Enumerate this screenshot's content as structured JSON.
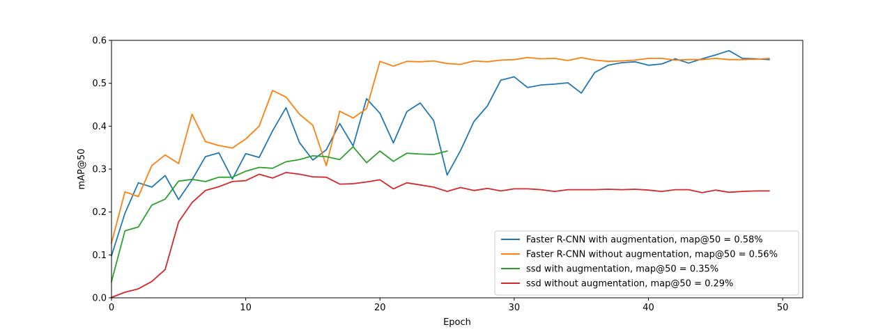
{
  "chart_data": {
    "type": "line",
    "xlabel": "Epoch",
    "ylabel": "mAP@50",
    "xlim": [
      0,
      51.5
    ],
    "ylim": [
      0,
      0.6
    ],
    "xticks": [
      0,
      10,
      20,
      30,
      40,
      50
    ],
    "yticks": [
      0.0,
      0.1,
      0.2,
      0.3,
      0.4,
      0.5,
      0.6
    ],
    "xtick_labels": [
      "0",
      "10",
      "20",
      "30",
      "40",
      "50"
    ],
    "ytick_labels": [
      "0.0",
      "0.1",
      "0.2",
      "0.3",
      "0.4",
      "0.5",
      "0.6"
    ],
    "grid": false,
    "legend_position": "bottom-right",
    "series": [
      {
        "name": "Faster R-CNN with augmentation, map@50 = 0.58%",
        "color": "#1f77b4",
        "x": [
          0,
          1,
          2,
          3,
          4,
          5,
          6,
          7,
          8,
          9,
          10,
          11,
          12,
          13,
          14,
          15,
          16,
          17,
          18,
          19,
          20,
          21,
          22,
          23,
          24,
          25,
          26,
          27,
          28,
          29,
          30,
          31,
          32,
          33,
          34,
          35,
          36,
          37,
          38,
          39,
          40,
          41,
          42,
          43,
          44,
          45,
          46,
          47,
          48,
          49
        ],
        "values": [
          0.098,
          0.197,
          0.268,
          0.258,
          0.285,
          0.229,
          0.275,
          0.329,
          0.338,
          0.277,
          0.336,
          0.327,
          0.389,
          0.443,
          0.362,
          0.321,
          0.345,
          0.406,
          0.354,
          0.464,
          0.43,
          0.361,
          0.434,
          0.454,
          0.413,
          0.286,
          0.343,
          0.411,
          0.447,
          0.507,
          0.515,
          0.49,
          0.496,
          0.498,
          0.501,
          0.477,
          0.525,
          0.542,
          0.548,
          0.55,
          0.542,
          0.545,
          0.557,
          0.547,
          0.557,
          0.566,
          0.576,
          0.558,
          0.557,
          0.555
        ]
      },
      {
        "name": "Faster R-CNN without augmentation, map@50 = 0.56%",
        "color": "#ff7f0e",
        "x": [
          0,
          1,
          2,
          3,
          4,
          5,
          6,
          7,
          8,
          9,
          10,
          11,
          12,
          13,
          14,
          15,
          16,
          17,
          18,
          19,
          20,
          21,
          22,
          23,
          24,
          25,
          26,
          27,
          28,
          29,
          30,
          31,
          32,
          33,
          34,
          35,
          36,
          37,
          38,
          39,
          40,
          41,
          42,
          43,
          44,
          45,
          46,
          47,
          48,
          49
        ],
        "values": [
          0.128,
          0.247,
          0.236,
          0.308,
          0.333,
          0.313,
          0.428,
          0.364,
          0.355,
          0.349,
          0.37,
          0.4,
          0.483,
          0.468,
          0.428,
          0.402,
          0.308,
          0.435,
          0.419,
          0.441,
          0.551,
          0.54,
          0.551,
          0.55,
          0.552,
          0.546,
          0.544,
          0.552,
          0.55,
          0.554,
          0.555,
          0.56,
          0.557,
          0.558,
          0.553,
          0.56,
          0.554,
          0.551,
          0.552,
          0.554,
          0.558,
          0.558,
          0.554,
          0.555,
          0.555,
          0.558,
          0.555,
          0.555,
          0.556,
          0.558
        ]
      },
      {
        "name": "ssd with augmentation, map@50 = 0.35%",
        "color": "#2ca02c",
        "x": [
          0,
          1,
          2,
          3,
          4,
          5,
          6,
          7,
          8,
          9,
          10,
          11,
          12,
          13,
          14,
          15,
          16,
          17,
          18,
          19,
          20,
          21,
          22,
          23,
          24,
          25
        ],
        "values": [
          0.038,
          0.156,
          0.165,
          0.216,
          0.23,
          0.272,
          0.276,
          0.271,
          0.281,
          0.281,
          0.295,
          0.304,
          0.302,
          0.317,
          0.322,
          0.331,
          0.329,
          0.322,
          0.352,
          0.315,
          0.342,
          0.318,
          0.337,
          0.335,
          0.334,
          0.342
        ]
      },
      {
        "name": "ssd without augmentation, map@50 = 0.29%",
        "color": "#d62728",
        "x": [
          0,
          1,
          2,
          3,
          4,
          5,
          6,
          7,
          8,
          9,
          10,
          11,
          12,
          13,
          14,
          15,
          16,
          17,
          18,
          19,
          20,
          21,
          22,
          23,
          24,
          25,
          26,
          27,
          28,
          29,
          30,
          31,
          32,
          33,
          34,
          35,
          36,
          37,
          38,
          39,
          40,
          41,
          42,
          43,
          44,
          45,
          46,
          47,
          48,
          49
        ],
        "values": [
          0.001,
          0.013,
          0.021,
          0.038,
          0.066,
          0.177,
          0.222,
          0.25,
          0.259,
          0.271,
          0.273,
          0.288,
          0.279,
          0.292,
          0.288,
          0.282,
          0.281,
          0.265,
          0.266,
          0.27,
          0.275,
          0.254,
          0.268,
          0.263,
          0.258,
          0.248,
          0.257,
          0.25,
          0.255,
          0.249,
          0.254,
          0.254,
          0.252,
          0.248,
          0.252,
          0.252,
          0.252,
          0.253,
          0.252,
          0.253,
          0.251,
          0.248,
          0.252,
          0.252,
          0.245,
          0.251,
          0.246,
          0.248,
          0.249,
          0.249
        ]
      }
    ]
  }
}
